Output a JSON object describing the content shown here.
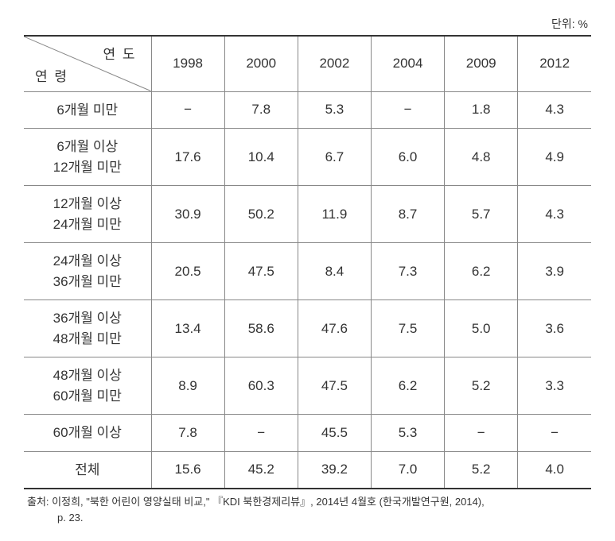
{
  "unit_label": "단위: %",
  "header": {
    "top_label": "연 도",
    "left_label": "연 령",
    "years": [
      "1998",
      "2000",
      "2002",
      "2004",
      "2009",
      "2012"
    ]
  },
  "rows": [
    {
      "label_lines": [
        "6개월 미만"
      ],
      "values": [
        "−",
        "7.8",
        "5.3",
        "−",
        "1.8",
        "4.3"
      ]
    },
    {
      "label_lines": [
        "6개월 이상",
        "12개월 미만"
      ],
      "values": [
        "17.6",
        "10.4",
        "6.7",
        "6.0",
        "4.8",
        "4.9"
      ]
    },
    {
      "label_lines": [
        "12개월 이상",
        "24개월 미만"
      ],
      "values": [
        "30.9",
        "50.2",
        "11.9",
        "8.7",
        "5.7",
        "4.3"
      ]
    },
    {
      "label_lines": [
        "24개월 이상",
        "36개월 미만"
      ],
      "values": [
        "20.5",
        "47.5",
        "8.4",
        "7.3",
        "6.2",
        "3.9"
      ]
    },
    {
      "label_lines": [
        "36개월 이상",
        "48개월 미만"
      ],
      "values": [
        "13.4",
        "58.6",
        "47.6",
        "7.5",
        "5.0",
        "3.6"
      ]
    },
    {
      "label_lines": [
        "48개월 이상",
        "60개월 미만"
      ],
      "values": [
        "8.9",
        "60.3",
        "47.5",
        "6.2",
        "5.2",
        "3.3"
      ]
    },
    {
      "label_lines": [
        "60개월 이상"
      ],
      "values": [
        "7.8",
        "−",
        "45.5",
        "5.3",
        "−",
        "−"
      ]
    },
    {
      "label_lines": [
        "전체"
      ],
      "values": [
        "15.6",
        "45.2",
        "39.2",
        "7.0",
        "5.2",
        "4.0"
      ]
    }
  ],
  "source": {
    "line1": "출처: 이정희, \"북한 어린이 영양실태 비교,\" 『KDI 북한경제리뷰』, 2014년 4월호 (한국개발연구원, 2014),",
    "line2": "p. 23."
  },
  "style": {
    "border_color": "#888888",
    "border_strong_color": "#333333",
    "text_color": "#333333",
    "background_color": "#ffffff",
    "cell_fontsize": 17,
    "unit_fontsize": 14,
    "source_fontsize": 13
  }
}
